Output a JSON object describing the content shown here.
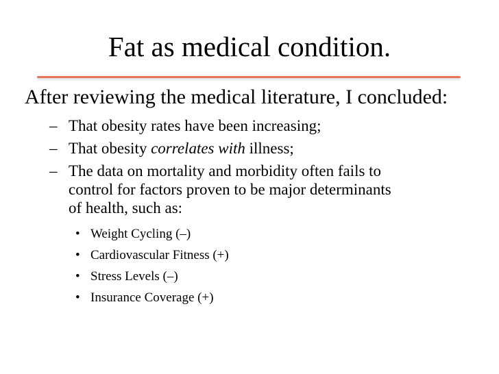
{
  "slide": {
    "title": "Fat as medical condition.",
    "accent_rule_color": "#e6765a",
    "lead": "After reviewing the medical literature, I concluded:",
    "points": [
      {
        "marker": "–",
        "parts": [
          "That obesity rates have been increasing;"
        ]
      },
      {
        "marker": "–",
        "part_before": "That obesity ",
        "part_emphasis": "correlates with",
        "part_after": " illness;"
      },
      {
        "marker": "–",
        "lines": [
          "The data on mortality and morbidity often fails to",
          "control for factors proven to be major determinants",
          "of  health, such as:"
        ]
      }
    ],
    "factors": [
      {
        "marker": "•",
        "label": "Weight Cycling (–)"
      },
      {
        "marker": "•",
        "label": "Cardiovascular Fitness (+)"
      },
      {
        "marker": "•",
        "label": "Stress Levels (–)"
      },
      {
        "marker": "•",
        "label": "Insurance Coverage (+)"
      }
    ]
  }
}
